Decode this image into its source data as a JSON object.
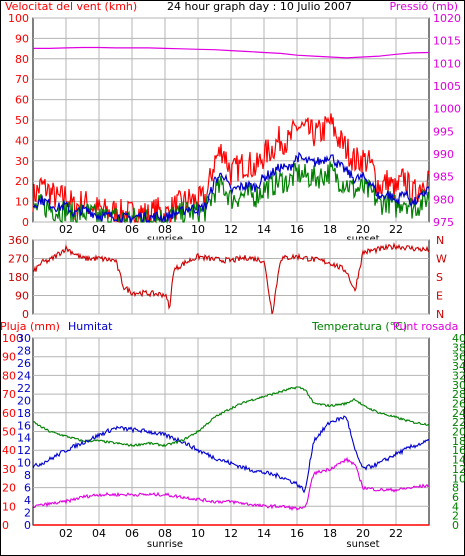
{
  "colors": {
    "background": "#ffffff",
    "frame": "#000000",
    "grid": "#b4b4b4",
    "text": "#000000",
    "wind": "#ff0000",
    "wind_avg": "#0000cc",
    "wind_dir": "#cc0000",
    "pressure": "#e000e0",
    "rain": "#ff0000",
    "humidity": "#0000cc",
    "temperature": "#008000",
    "dewpoint": "#e000e0"
  },
  "header": {
    "title": "24 hour graph day : 10 Julio 2007"
  },
  "chart_data": [
    {
      "type": "line",
      "name": "wind-pressure",
      "left_axis_label": "Velocitat del vent (kmh)",
      "right_axis_label": "Pressió (mb)",
      "ylim_left": [
        0,
        100
      ],
      "yticks_left": [
        "0",
        "10",
        "20",
        "30",
        "40",
        "50",
        "60",
        "70",
        "80",
        "90",
        "100"
      ],
      "ylim_right": [
        975,
        1020
      ],
      "yticks_right": [
        "975",
        "980",
        "985",
        "990",
        "995",
        "1000",
        "1005",
        "1010",
        "1015",
        "1020"
      ],
      "xlim_hours": [
        0,
        24
      ],
      "xticks": [
        "02",
        "04",
        "06",
        "08",
        "10",
        "12",
        "14",
        "16",
        "18",
        "20",
        "22"
      ],
      "sun_labels": {
        "sunrise": "sunrise",
        "sunrise_hour": 8,
        "sunset": "sunset",
        "sunset_hour": 20
      },
      "grid": true,
      "series": [
        {
          "key": "gust",
          "axis": "left",
          "x": [
            0,
            0.5,
            1,
            1.5,
            2,
            2.5,
            3,
            3.5,
            4,
            4.5,
            5,
            5.5,
            6,
            6.5,
            7,
            7.5,
            8,
            8.5,
            9,
            9.5,
            10,
            10.5,
            11,
            11.5,
            12,
            12.5,
            13,
            13.5,
            14,
            14.5,
            15,
            15.5,
            16,
            16.5,
            17,
            17.5,
            18,
            18.5,
            19,
            19.5,
            20,
            20.5,
            21,
            21.5,
            22,
            22.5,
            23,
            23.5,
            24
          ],
          "values": [
            12,
            18,
            15,
            11,
            13,
            7,
            10,
            8,
            6,
            5,
            5,
            4,
            4,
            5,
            3,
            6,
            3,
            7,
            9,
            11,
            10,
            12,
            30,
            36,
            24,
            27,
            29,
            26,
            33,
            36,
            41,
            39,
            47,
            45,
            43,
            44,
            49,
            41,
            36,
            30,
            31,
            28,
            17,
            20,
            15,
            22,
            13,
            18,
            24
          ]
        },
        {
          "key": "average",
          "axis": "left",
          "x": [
            0,
            0.5,
            1,
            1.5,
            2,
            2.5,
            3,
            3.5,
            4,
            4.5,
            5,
            5.5,
            6,
            6.5,
            7,
            7.5,
            8,
            8.5,
            9,
            9.5,
            10,
            10.5,
            11,
            11.5,
            12,
            12.5,
            13,
            13.5,
            14,
            14.5,
            15,
            15.5,
            16,
            16.5,
            17,
            17.5,
            18,
            18.5,
            19,
            19.5,
            20,
            20.5,
            21,
            21.5,
            22,
            22.5,
            23,
            23.5,
            24
          ],
          "values": [
            8,
            11,
            9,
            7,
            8,
            4,
            6,
            5,
            3,
            3,
            3,
            2,
            2,
            3,
            2,
            3,
            2,
            4,
            5,
            7,
            6,
            8,
            20,
            24,
            15,
            17,
            18,
            17,
            22,
            24,
            27,
            26,
            32,
            30,
            29,
            30,
            33,
            28,
            25,
            21,
            22,
            19,
            12,
            14,
            10,
            15,
            9,
            12,
            17
          ]
        },
        {
          "key": "pressure",
          "axis": "right",
          "x": [
            0,
            1,
            2,
            3,
            4,
            5,
            6,
            7,
            8,
            9,
            10,
            11,
            12,
            13,
            14,
            15,
            16,
            17,
            18,
            19,
            20,
            21,
            22,
            23,
            24
          ],
          "values": [
            1013.3,
            1013.3,
            1013.4,
            1013.5,
            1013.5,
            1013.4,
            1013.4,
            1013.4,
            1013.3,
            1013.2,
            1013.1,
            1013.0,
            1012.8,
            1012.6,
            1012.4,
            1012.2,
            1011.8,
            1011.6,
            1011.4,
            1011.2,
            1011.4,
            1011.6,
            1012.0,
            1012.3,
            1012.4
          ]
        }
      ]
    },
    {
      "type": "line",
      "name": "wind-direction",
      "left_ticks": [
        "360",
        "270",
        "180",
        "90",
        "0"
      ],
      "ylim": [
        0,
        360
      ],
      "right_labels": [
        "N",
        "W",
        "S",
        "E",
        "N"
      ],
      "xlim_hours": [
        0,
        24
      ],
      "series": [
        {
          "key": "direction",
          "x": [
            0,
            0.5,
            1,
            2,
            3,
            4,
            5,
            5.5,
            6,
            7,
            8,
            8.3,
            8.5,
            9,
            9.5,
            10,
            11,
            12,
            13,
            14,
            14.5,
            15,
            16,
            17,
            18,
            19,
            19.5,
            20,
            21,
            22,
            23,
            24
          ],
          "values": [
            200,
            250,
            260,
            320,
            270,
            270,
            260,
            130,
            105,
            100,
            95,
            30,
            210,
            240,
            260,
            280,
            265,
            260,
            275,
            260,
            0,
            270,
            280,
            265,
            250,
            210,
            110,
            300,
            315,
            330,
            320,
            310
          ]
        }
      ]
    },
    {
      "type": "line",
      "name": "humidity-temperature",
      "rain_label": "Pluja (mm)",
      "humidity_label": "Humitat",
      "temperature_label": "Temperatura (°C)",
      "dewpoint_label": "Punt rosada",
      "ylim_humidity": [
        0,
        100
      ],
      "yticks_humidity": [
        "0",
        "10",
        "20",
        "30",
        "40",
        "50",
        "60",
        "70",
        "80",
        "90",
        "100"
      ],
      "ylim_rain": [
        0,
        30
      ],
      "yticks_rain": [
        "0",
        "2",
        "4",
        "6",
        "8",
        "10",
        "12",
        "14",
        "16",
        "18",
        "20",
        "22",
        "24",
        "26",
        "28",
        "30"
      ],
      "ylim_temp": [
        0,
        40
      ],
      "yticks_temp": [
        "0",
        "2",
        "4",
        "6",
        "8",
        "10",
        "12",
        "14",
        "16",
        "18",
        "20",
        "22",
        "24",
        "26",
        "28",
        "30",
        "32",
        "34",
        "36",
        "38",
        "40"
      ],
      "xlim_hours": [
        0,
        24
      ],
      "series": [
        {
          "key": "rain",
          "axis": "rain",
          "x": [
            0,
            24
          ],
          "values": [
            0,
            0
          ]
        },
        {
          "key": "humidity",
          "axis": "humidity",
          "x": [
            0,
            1,
            2,
            3,
            4,
            5,
            6,
            7,
            8,
            9,
            10,
            11,
            12,
            13,
            14,
            15,
            16,
            16.5,
            17,
            18,
            19,
            19.5,
            20,
            21,
            22,
            23,
            24
          ],
          "values": [
            31,
            35,
            40,
            44,
            48,
            52,
            51,
            50,
            48,
            45,
            40,
            36,
            33,
            30,
            28,
            26,
            22,
            18,
            45,
            55,
            58,
            40,
            30,
            33,
            38,
            42,
            45
          ]
        },
        {
          "key": "temperature",
          "axis": "temp",
          "x": [
            0,
            1,
            2,
            3,
            4,
            5,
            6,
            7,
            8,
            9,
            10,
            11,
            12,
            13,
            14,
            15,
            16,
            16.5,
            17,
            18,
            19,
            19.5,
            20,
            21,
            22,
            23,
            24
          ],
          "values": [
            22,
            20,
            19,
            18,
            18,
            17.5,
            17,
            17.5,
            17,
            18,
            20,
            23,
            25,
            26.5,
            27.5,
            28.5,
            29.5,
            29,
            26,
            25.5,
            26,
            27,
            25.5,
            24,
            23,
            22,
            21.5
          ]
        },
        {
          "key": "dewpoint",
          "axis": "temp",
          "x": [
            0,
            1,
            2,
            3,
            4,
            5,
            6,
            7,
            8,
            9,
            10,
            11,
            12,
            13,
            14,
            15,
            16,
            16.5,
            17,
            18,
            19,
            19.5,
            20,
            21,
            22,
            23,
            24
          ],
          "values": [
            4,
            4.5,
            5,
            6,
            6.5,
            6.5,
            6.5,
            6.5,
            6.5,
            6,
            5.5,
            5,
            5,
            4.5,
            4,
            4,
            3.5,
            3.5,
            11,
            12,
            14,
            13,
            8,
            7.5,
            7.5,
            8,
            8.5
          ]
        }
      ]
    }
  ]
}
